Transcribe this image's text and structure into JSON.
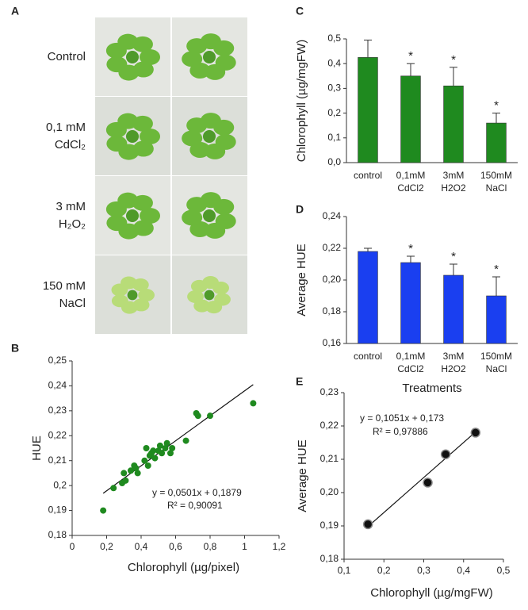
{
  "chart_data": [
    {
      "panel": "A",
      "type": "photo-grid",
      "row_labels": [
        [
          "Control"
        ],
        [
          "0,1 mM",
          "CdCl₂"
        ],
        [
          "3 mM",
          "H₂O₂"
        ],
        [
          "150 mM",
          "NaCl"
        ]
      ]
    },
    {
      "panel": "B",
      "type": "scatter",
      "xlabel": "Chlorophyll (µg/pixel)",
      "ylabel": "HUE",
      "color": "#1f8a1f",
      "x": [
        0.18,
        0.24,
        0.29,
        0.3,
        0.31,
        0.34,
        0.36,
        0.37,
        0.38,
        0.42,
        0.43,
        0.44,
        0.45,
        0.46,
        0.47,
        0.48,
        0.5,
        0.51,
        0.52,
        0.54,
        0.55,
        0.57,
        0.58,
        0.66,
        0.72,
        0.73,
        0.8,
        1.05
      ],
      "y": [
        0.19,
        0.199,
        0.201,
        0.205,
        0.202,
        0.206,
        0.208,
        0.207,
        0.205,
        0.21,
        0.215,
        0.208,
        0.212,
        0.213,
        0.214,
        0.211,
        0.214,
        0.216,
        0.213,
        0.215,
        0.217,
        0.213,
        0.215,
        0.218,
        0.229,
        0.228,
        0.228,
        0.233
      ],
      "trendline": {
        "slope": 0.0501,
        "intercept": 0.1879,
        "x_range": [
          0.18,
          1.05
        ]
      },
      "equation": "y = 0,0501x + 0,1879",
      "r_squared": "R² = 0,90091",
      "xlim": [
        0,
        1.2
      ],
      "xticks": [
        0,
        {
          "value": 0.2,
          "label": "0,2"
        },
        {
          "value": 0.4,
          "label": "0,4"
        },
        {
          "value": 0.6,
          "label": "0,6"
        },
        {
          "value": 0.8,
          "label": "0,8"
        },
        1,
        {
          "value": 1.2,
          "label": "1,2"
        }
      ],
      "ylim": [
        0.18,
        0.25
      ],
      "yticks": [
        {
          "value": 0.18,
          "label": "0,18"
        },
        {
          "value": 0.19,
          "label": "0,19"
        },
        {
          "value": 0.2,
          "label": "0,2"
        },
        {
          "value": 0.21,
          "label": "0,21"
        },
        {
          "value": 0.22,
          "label": "0,22"
        },
        {
          "value": 0.23,
          "label": "0,23"
        },
        {
          "value": 0.24,
          "label": "0,24"
        },
        {
          "value": 0.25,
          "label": "0,25"
        }
      ]
    },
    {
      "panel": "C",
      "type": "bar",
      "ylabel": "Chlorophyll (µg/mgFW)",
      "color": "#1f8a1f",
      "categories": [
        "control",
        "0,1mM CdCl2",
        "3mM H2O2",
        "150mM NaCl"
      ],
      "values": [
        0.425,
        0.35,
        0.31,
        0.16
      ],
      "errors": [
        0.07,
        0.05,
        0.075,
        0.04
      ],
      "annotations": [
        null,
        "*",
        "*",
        "*"
      ],
      "ylim": [
        0,
        0.5
      ],
      "yticks": [
        {
          "value": 0,
          "label": "0,0"
        },
        {
          "value": 0.1,
          "label": "0,1"
        },
        {
          "value": 0.2,
          "label": "0,2"
        },
        {
          "value": 0.3,
          "label": "0,3"
        },
        {
          "value": 0.4,
          "label": "0,4"
        },
        {
          "value": 0.5,
          "label": "0,5"
        }
      ]
    },
    {
      "panel": "D",
      "type": "bar",
      "ylabel": "Average HUE",
      "xlabel": "Treatments",
      "color": "#1a3ff0",
      "categories": [
        "control",
        "0,1mM CdCl2",
        "3mM H2O2",
        "150mM NaCl"
      ],
      "values": [
        0.218,
        0.211,
        0.203,
        0.19
      ],
      "errors": [
        0.002,
        0.004,
        0.007,
        0.012
      ],
      "annotations": [
        null,
        "*",
        "*",
        "*"
      ],
      "ylim": [
        0.16,
        0.24
      ],
      "yticks": [
        {
          "value": 0.16,
          "label": "0,16"
        },
        {
          "value": 0.18,
          "label": "0,18"
        },
        {
          "value": 0.2,
          "label": "0,20"
        },
        {
          "value": 0.22,
          "label": "0,22"
        },
        {
          "value": 0.24,
          "label": "0,24"
        }
      ]
    },
    {
      "panel": "E",
      "type": "scatter",
      "xlabel": "Chlorophyll (µg/mgFW)",
      "ylabel": "Average HUE",
      "color": "#111111",
      "x": [
        0.16,
        0.31,
        0.355,
        0.43
      ],
      "y": [
        0.1905,
        0.203,
        0.2115,
        0.218
      ],
      "trendline": {
        "slope": 0.1051,
        "intercept": 0.173,
        "x_range": [
          0.16,
          0.43
        ]
      },
      "equation": "y = 0,1051x + 0,173",
      "r_squared": "R² = 0,97886",
      "xlim": [
        0.1,
        0.5
      ],
      "xticks": [
        {
          "value": 0.1,
          "label": "0,1"
        },
        {
          "value": 0.2,
          "label": "0,2"
        },
        {
          "value": 0.3,
          "label": "0,3"
        },
        {
          "value": 0.4,
          "label": "0,4"
        },
        {
          "value": 0.5,
          "label": "0,5"
        }
      ],
      "ylim": [
        0.18,
        0.23
      ],
      "yticks": [
        {
          "value": 0.18,
          "label": "0,18"
        },
        {
          "value": 0.19,
          "label": "0,19"
        },
        {
          "value": 0.2,
          "label": "0,20"
        },
        {
          "value": 0.21,
          "label": "0,21"
        },
        {
          "value": 0.22,
          "label": "0,22"
        },
        {
          "value": 0.23,
          "label": "0,23"
        }
      ]
    }
  ]
}
